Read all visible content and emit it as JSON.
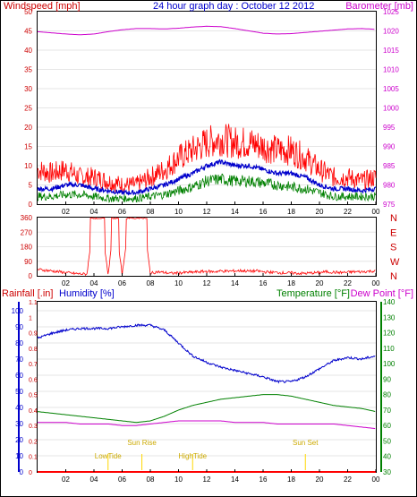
{
  "title": "24 hour graph day : October 12 2012",
  "top_panel": {
    "left_axis_label": "Windspeed [mph]",
    "right_axis_label": "Barometer [mb]",
    "left_ticks": [
      "0",
      "5",
      "10",
      "15",
      "20",
      "25",
      "30",
      "35",
      "40",
      "45",
      "50"
    ],
    "right_ticks": [
      "975",
      "980",
      "985",
      "990",
      "995",
      "1000",
      "1005",
      "1010",
      "1015",
      "1020",
      "1025"
    ],
    "x_ticks": [
      "02",
      "04",
      "06",
      "08",
      "10",
      "12",
      "14",
      "16",
      "18",
      "20",
      "22",
      "00"
    ]
  },
  "dir_panel": {
    "left_ticks": [
      "0",
      "90",
      "180",
      "270",
      "360"
    ],
    "right_labels": [
      "N",
      "W",
      "S",
      "E",
      "N"
    ]
  },
  "bottom_panel": {
    "rain_label": "Rainfall [.in]",
    "humidity_label": "Humidity [%]",
    "temp_label": "Temperature [°F]",
    "dew_label": "Dew Point [°F]",
    "rain_ticks": [
      "0",
      "0.1",
      "0.2",
      "0.3",
      "0.4",
      "0.5",
      "0.6",
      "0.7",
      "0.8",
      "0.9",
      "1",
      "1.1"
    ],
    "hum_ticks": [
      "0",
      "10",
      "20",
      "30",
      "40",
      "50",
      "60",
      "70",
      "80",
      "90",
      "100"
    ],
    "temp_ticks": [
      "30",
      "40",
      "50",
      "60",
      "70",
      "80",
      "90",
      "100",
      "110",
      "120",
      "130",
      "140"
    ],
    "x_ticks": [
      "02",
      "04",
      "06",
      "08",
      "10",
      "12",
      "14",
      "16",
      "18",
      "20",
      "22",
      "00"
    ],
    "markers": [
      {
        "label": "LowTide",
        "hour": 5.0
      },
      {
        "label": "Sun Rise",
        "hour": 7.4
      },
      {
        "label": "HighTide",
        "hour": 11.0
      },
      {
        "label": "Sun Set",
        "hour": 19.0
      }
    ]
  },
  "colors": {
    "gust": "#ff0000",
    "wind_avg": "#0000cc",
    "wind_min": "#008000",
    "barometer": "#cc00cc",
    "direction": "#ff0000",
    "humidity": "#0000cc",
    "temperature": "#008000",
    "dewpoint": "#cc00cc",
    "rain_axis": "#ff0000",
    "markers": "#ffd700"
  },
  "chart_data": [
    {
      "type": "line",
      "title": "",
      "xlabel": "",
      "ylabel": "Windspeed [mph]",
      "ylim": [
        0,
        50
      ],
      "y2label": "Barometer [mb]",
      "y2lim": [
        975,
        1025
      ],
      "x_unit": "hour",
      "series": [
        {
          "key": "gust",
          "axis": "left",
          "x": [
            0,
            1,
            2,
            3,
            4,
            5,
            6,
            7,
            8,
            9,
            10,
            11,
            12,
            13,
            14,
            15,
            16,
            17,
            18,
            19,
            20,
            21,
            22,
            23,
            24
          ],
          "values": [
            9,
            8,
            9,
            7,
            7,
            6,
            5,
            5,
            7,
            9,
            12,
            14,
            16,
            17,
            16,
            16,
            15,
            14,
            14,
            12,
            9,
            7,
            7,
            6,
            7
          ]
        },
        {
          "key": "wind_avg",
          "axis": "left",
          "x": [
            0,
            1,
            2,
            3,
            4,
            5,
            6,
            7,
            8,
            9,
            10,
            11,
            12,
            13,
            14,
            15,
            16,
            17,
            18,
            19,
            20,
            21,
            22,
            23,
            24
          ],
          "values": [
            4,
            4,
            5,
            5,
            4,
            3.5,
            3,
            3,
            4,
            5,
            6.5,
            8,
            10,
            11,
            10,
            10,
            9,
            8,
            8,
            7,
            5,
            4,
            4,
            3.5,
            4
          ]
        },
        {
          "key": "wind_min",
          "axis": "left",
          "x": [
            0,
            1,
            2,
            3,
            4,
            5,
            6,
            7,
            8,
            9,
            10,
            11,
            12,
            13,
            14,
            15,
            16,
            17,
            18,
            19,
            20,
            21,
            22,
            23,
            24
          ],
          "values": [
            2,
            2,
            2.5,
            2.5,
            2,
            1.5,
            1.5,
            1.5,
            2,
            2.5,
            3.5,
            4.5,
            6,
            6.5,
            6,
            6,
            5.5,
            5,
            4.5,
            4,
            3,
            2,
            2,
            2,
            2
          ]
        },
        {
          "key": "barometer",
          "axis": "right",
          "x": [
            0,
            1,
            2,
            3,
            4,
            5,
            6,
            7,
            8,
            9,
            10,
            11,
            12,
            13,
            14,
            15,
            16,
            17,
            18,
            19,
            20,
            21,
            22,
            23,
            24
          ],
          "values": [
            1019.8,
            1019.5,
            1019.2,
            1019.0,
            1019.2,
            1019.8,
            1020.3,
            1020.6,
            1020.6,
            1020.5,
            1020.7,
            1021.0,
            1021.2,
            1021.1,
            1020.6,
            1020.0,
            1019.4,
            1019.2,
            1019.3,
            1019.6,
            1019.9,
            1020.2,
            1020.5,
            1020.6,
            1020.4
          ]
        }
      ]
    },
    {
      "type": "line",
      "title": "",
      "ylabel": "",
      "ylim": [
        0,
        360
      ],
      "x_unit": "hour",
      "series": [
        {
          "key": "direction",
          "x": [
            0,
            0.5,
            1,
            1.5,
            2,
            2.5,
            3,
            3.5,
            4,
            4.5,
            5,
            5.5,
            6,
            6.5,
            7,
            7.5,
            8,
            8.5,
            9,
            9.5,
            10,
            10.5,
            11,
            11.5,
            12,
            12.5,
            13,
            13.5,
            14,
            14.5,
            15,
            15.5,
            16,
            16.5,
            17,
            17.5,
            18,
            18.5,
            19,
            19.5,
            20,
            20.5,
            21,
            21.5,
            22,
            22.5,
            23,
            23.5,
            24
          ],
          "values": [
            40,
            35,
            30,
            25,
            20,
            15,
            12,
            10,
            355,
            350,
            10,
            355,
            5,
            350,
            355,
            358,
            15,
            25,
            20,
            15,
            18,
            20,
            22,
            25,
            28,
            25,
            30,
            28,
            30,
            32,
            28,
            30,
            25,
            22,
            20,
            18,
            18,
            15,
            15,
            18,
            20,
            25,
            22,
            20,
            22,
            25,
            25,
            28,
            30
          ]
        }
      ]
    },
    {
      "type": "line",
      "title": "",
      "ylabel": "Humidity [%]",
      "ylim": [
        0,
        100
      ],
      "y2label": "Temperature [°F]",
      "y2lim": [
        30,
        140
      ],
      "y3label": "Rainfall [.in]",
      "y3lim": [
        0,
        1.1
      ],
      "x_unit": "hour",
      "series": [
        {
          "key": "humidity",
          "axis": "humidity",
          "x": [
            0,
            1,
            2,
            3,
            4,
            5,
            6,
            7,
            8,
            9,
            10,
            11,
            12,
            13,
            14,
            15,
            16,
            17,
            18,
            19,
            20,
            21,
            22,
            23,
            24
          ],
          "values": [
            83,
            86,
            88,
            89,
            89,
            89,
            90,
            91,
            91,
            88,
            80,
            72,
            68,
            65,
            63,
            61,
            59,
            56,
            56,
            59,
            64,
            69,
            71,
            70,
            72
          ]
        },
        {
          "key": "temperature",
          "axis": "temp",
          "x": [
            0,
            1,
            2,
            3,
            4,
            5,
            6,
            7,
            8,
            9,
            10,
            11,
            12,
            13,
            14,
            15,
            16,
            17,
            18,
            19,
            20,
            21,
            22,
            23,
            24
          ],
          "values": [
            69,
            68,
            67,
            66,
            65,
            64,
            63,
            62,
            63,
            66,
            70,
            73,
            75,
            77,
            78,
            79,
            80,
            80,
            79,
            77,
            75,
            73,
            72,
            71,
            69
          ]
        },
        {
          "key": "dewpoint",
          "axis": "temp",
          "x": [
            0,
            1,
            2,
            3,
            4,
            5,
            6,
            7,
            8,
            9,
            10,
            11,
            12,
            13,
            14,
            15,
            16,
            17,
            18,
            19,
            20,
            21,
            22,
            23,
            24
          ],
          "values": [
            62,
            62,
            62,
            61,
            61,
            61,
            60,
            60,
            61,
            62,
            63,
            63,
            63,
            63,
            62,
            62,
            62,
            61,
            61,
            61,
            61,
            61,
            60,
            59,
            58
          ]
        },
        {
          "key": "rainfall",
          "axis": "rain",
          "x": [
            0,
            24
          ],
          "values": [
            0,
            0
          ]
        }
      ]
    }
  ]
}
